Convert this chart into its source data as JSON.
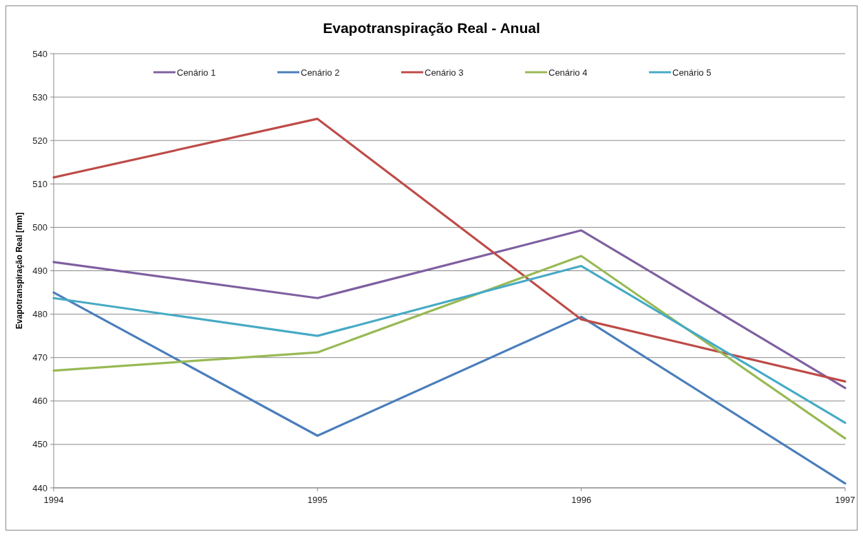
{
  "chart_data": {
    "type": "line",
    "title": "Evapotranspiração Real - Anual",
    "ylabel": "Evapotranspiração  Real [mm]",
    "categories": [
      "1994",
      "1995",
      "1996",
      "1997"
    ],
    "series": [
      {
        "name": "Cenário 1",
        "color": "#7f5fa0",
        "values": [
          492,
          483.7,
          499.3,
          463
        ]
      },
      {
        "name": "Cenário 2",
        "color": "#4a7ebb",
        "values": [
          485,
          452,
          479.4,
          441
        ]
      },
      {
        "name": "Cenário 3",
        "color": "#be4b48",
        "values": [
          511.5,
          525,
          478.8,
          464.5
        ]
      },
      {
        "name": "Cenário 4",
        "color": "#98b954",
        "values": [
          467,
          471.2,
          493.4,
          451.4
        ]
      },
      {
        "name": "Cenário 5",
        "color": "#46aac5",
        "values": [
          483.7,
          475,
          491.1,
          455
        ]
      }
    ],
    "ylim": [
      440,
      540
    ],
    "yticks": [
      440,
      450,
      460,
      470,
      480,
      490,
      500,
      510,
      520,
      530,
      540
    ],
    "grid": "y",
    "legend": "top",
    "marker": "none",
    "line_style": "solid"
  }
}
